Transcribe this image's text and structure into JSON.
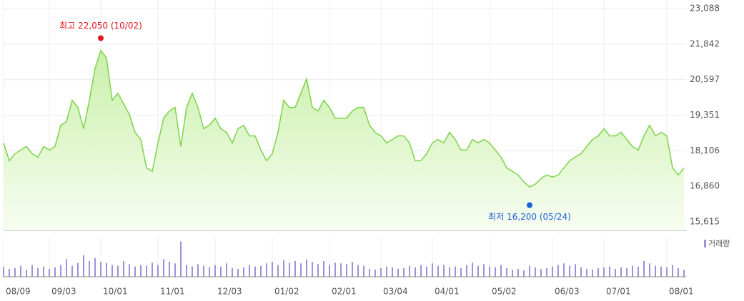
{
  "chart_data": [
    {
      "type": "area",
      "color": "#7dd34a",
      "categories": [
        "08/09",
        null,
        null,
        null,
        null,
        null,
        null,
        null,
        "09/03",
        null,
        null,
        null,
        null,
        null,
        null,
        null,
        null,
        "10/01",
        null,
        null,
        null,
        null,
        null,
        null,
        null,
        null,
        null,
        "11/01",
        null,
        null,
        null,
        null,
        null,
        null,
        null,
        null,
        null,
        "12/03",
        null,
        null,
        null,
        null,
        null,
        null,
        null,
        null,
        null,
        "01/02",
        null,
        null,
        null,
        null,
        null,
        null,
        null,
        null,
        null,
        "02/01",
        null,
        null,
        null,
        null,
        null,
        null,
        null,
        null,
        "03/04",
        null,
        null,
        null,
        null,
        null,
        null,
        null,
        null,
        "04/01",
        null,
        null,
        null,
        null,
        null,
        null,
        null,
        null,
        null,
        "05/02",
        null,
        null,
        null,
        null,
        null,
        null,
        null,
        null,
        null,
        null,
        "06/03",
        null,
        null,
        null,
        null,
        null,
        null,
        null,
        null,
        "07/01",
        null,
        null,
        null,
        null,
        null,
        null,
        null,
        null,
        null,
        null,
        "08/01",
        null,
        null,
        null
      ],
      "values": [
        18379,
        17756,
        18005,
        18130,
        18254,
        18005,
        17881,
        18254,
        18130,
        18254,
        19001,
        19126,
        19873,
        19624,
        18877,
        19873,
        20993,
        21616,
        21367,
        19873,
        20122,
        19748,
        19375,
        18752,
        18503,
        17507,
        17383,
        18379,
        19250,
        19499,
        19624,
        18254,
        19624,
        20122,
        19624,
        18877,
        19001,
        19250,
        18877,
        18752,
        18379,
        18877,
        19001,
        18628,
        18628,
        18130,
        17756,
        18005,
        18752,
        19873,
        19624,
        19624,
        20122,
        20620,
        19624,
        19499,
        19873,
        19624,
        19250,
        19250,
        19250,
        19499,
        19624,
        19624,
        19001,
        18752,
        18628,
        18379,
        18503,
        18628,
        18628,
        18379,
        17756,
        17756,
        18005,
        18379,
        18503,
        18379,
        18752,
        18503,
        18130,
        18130,
        18503,
        18379,
        18503,
        18379,
        18130,
        17881,
        17507,
        17383,
        17258,
        17009,
        16835,
        16935,
        17134,
        17258,
        17184,
        17258,
        17507,
        17756,
        17881,
        18005,
        18254,
        18503,
        18628,
        18877,
        18628,
        18628,
        18752,
        18503,
        18254,
        18130,
        18628,
        19001,
        18628,
        18752,
        18628,
        17507,
        17258,
        17507
      ],
      "ylim": [
        15316,
        23387
      ],
      "yticks": [
        {
          "value": 23088,
          "label": "23,088"
        },
        {
          "value": 21842,
          "label": "21,842"
        },
        {
          "value": 20597,
          "label": "20,597"
        },
        {
          "value": 19351,
          "label": "19,351"
        },
        {
          "value": 18106,
          "label": "18,106"
        },
        {
          "value": 16860,
          "label": "16,860"
        },
        {
          "value": 15615,
          "label": "15,615"
        }
      ],
      "grid": true,
      "annotations": [
        {
          "text": "최고 22,050 (10/02)",
          "value": 22050,
          "color": "#e3141c"
        },
        {
          "text": "최저 16,200 (05/24)",
          "value": 16200,
          "color": "#1a63d6"
        }
      ]
    },
    {
      "type": "bar",
      "ylim": [
        0,
        100
      ],
      "series": [
        {
          "name": "거래량",
          "color": "#a08fd9",
          "values": [
            25,
            20,
            22,
            28,
            18,
            30,
            22,
            26,
            20,
            24,
            30,
            45,
            28,
            35,
            55,
            40,
            48,
            38,
            35,
            30,
            28,
            40,
            32,
            26,
            30,
            28,
            36,
            30,
            45,
            38,
            34,
            90,
            30,
            26,
            32,
            28,
            24,
            30,
            26,
            34,
            22,
            20,
            24,
            30,
            26,
            28,
            34,
            38,
            30,
            42,
            36,
            40,
            34,
            44,
            38,
            32,
            40,
            30,
            36,
            34,
            32,
            38,
            30,
            28,
            20,
            18,
            22,
            26,
            24,
            20,
            22,
            28,
            24,
            30,
            26,
            34,
            28,
            30,
            24,
            26,
            22,
            30,
            36,
            28,
            32,
            26,
            24,
            30,
            22,
            18,
            20,
            16,
            28,
            24,
            20,
            22,
            26,
            30,
            34,
            28,
            32,
            24,
            20,
            18,
            22,
            24,
            26,
            20,
            24,
            22,
            28,
            26,
            40,
            34,
            28,
            26,
            24,
            30,
            22,
            18
          ]
        }
      ]
    }
  ]
}
